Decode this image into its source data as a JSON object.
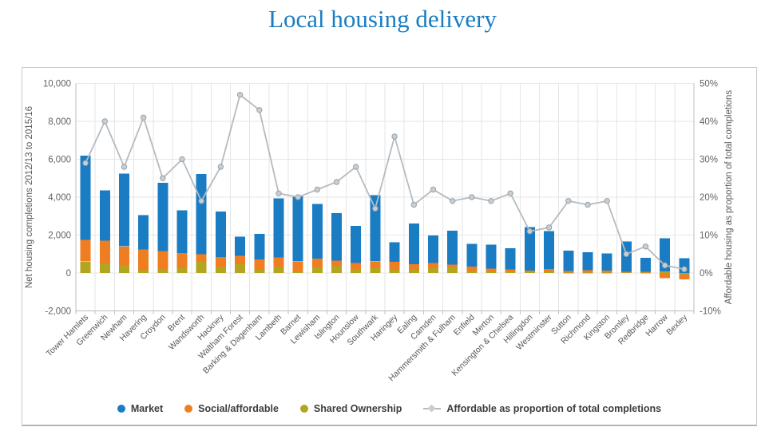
{
  "title": "Local housing delivery",
  "colors": {
    "title": "#1a7dc2",
    "market": "#1a7dc4",
    "social": "#ef7d22",
    "shared": "#b3a51e",
    "line": "#b4bbc1",
    "marker_fill": "#c9ced3",
    "marker_stroke": "#99a2a9",
    "grid": "#e6e6e6",
    "axis": "#bdbdbd",
    "tick_text": "#636363",
    "axis_title_text": "#595959"
  },
  "chart_data": {
    "type": "bar",
    "subtype": "stacked-bars-with-line",
    "grid": true,
    "legend_position": "bottom",
    "categories": [
      "Tower Hamlets",
      "Greenwich",
      "Newham",
      "Havering",
      "Croydon",
      "Brent",
      "Wandsworth",
      "Hackney",
      "Waltham Forest",
      "Barking & Dagenham",
      "Lambeth",
      "Barnet",
      "Lewisham",
      "Islington",
      "Hounslow",
      "Southwark",
      "Haringey",
      "Ealing",
      "Camden",
      "Hammersmith & Fulham",
      "Enfield",
      "Merton",
      "Kensington & Chelsea",
      "Hillingdon",
      "Westminster",
      "Sutton",
      "Richmond",
      "Kingston",
      "Bromley",
      "Redbridge",
      "Harrow",
      "Bexley"
    ],
    "series": [
      {
        "name": "Shared Ownership",
        "color": "#b3a51e",
        "values": [
          600,
          500,
          400,
          150,
          200,
          250,
          580,
          320,
          460,
          160,
          320,
          80,
          300,
          370,
          180,
          250,
          160,
          160,
          250,
          320,
          110,
          80,
          70,
          60,
          80,
          30,
          20,
          20,
          40,
          20,
          80,
          -90
        ]
      },
      {
        "name": "Social/affordable",
        "color": "#ef7d22",
        "values": [
          1150,
          1200,
          1000,
          1100,
          950,
          800,
          400,
          530,
          450,
          560,
          510,
          520,
          450,
          280,
          350,
          350,
          420,
          310,
          280,
          120,
          230,
          160,
          110,
          70,
          140,
          70,
          120,
          100,
          20,
          40,
          -280,
          -250
        ]
      },
      {
        "name": "Market",
        "color": "#1a7dc4",
        "values": [
          4450,
          2650,
          3850,
          1800,
          3600,
          2250,
          4250,
          2400,
          1000,
          1350,
          3100,
          3450,
          2900,
          2500,
          1950,
          3500,
          1050,
          2150,
          1450,
          1800,
          1200,
          1250,
          1120,
          2300,
          2000,
          1080,
          950,
          920,
          1600,
          750,
          1750,
          780
        ]
      }
    ],
    "line": {
      "name": "Affordable as proportion of total completions",
      "unit": "%",
      "values": [
        29,
        40,
        28,
        41,
        25,
        30,
        19,
        28,
        47,
        43,
        21,
        20,
        22,
        24,
        28,
        17,
        36,
        18,
        22,
        19,
        20,
        19,
        21,
        11,
        12,
        19,
        18,
        19,
        5,
        7,
        2,
        1
      ]
    },
    "y_left": {
      "label": "Net housing completions 2012/13 to 2015/16",
      "min": -2000,
      "max": 10000
    },
    "y_right": {
      "label": "Affordable housing as proportion of total completions",
      "min": -10,
      "max": 50
    },
    "y_ticks": [
      {
        "value": -2000,
        "left": "-2,000",
        "right": "-10%"
      },
      {
        "value": 0,
        "left": "0",
        "right": "0%"
      },
      {
        "value": 2000,
        "left": "2,000",
        "right": "10%"
      },
      {
        "value": 4000,
        "left": "4,000",
        "right": "20%"
      },
      {
        "value": 6000,
        "left": "6,000",
        "right": "30%"
      },
      {
        "value": 8000,
        "left": "8,000",
        "right": "40%"
      },
      {
        "value": 10000,
        "left": "10,000",
        "right": "50%"
      }
    ]
  }
}
